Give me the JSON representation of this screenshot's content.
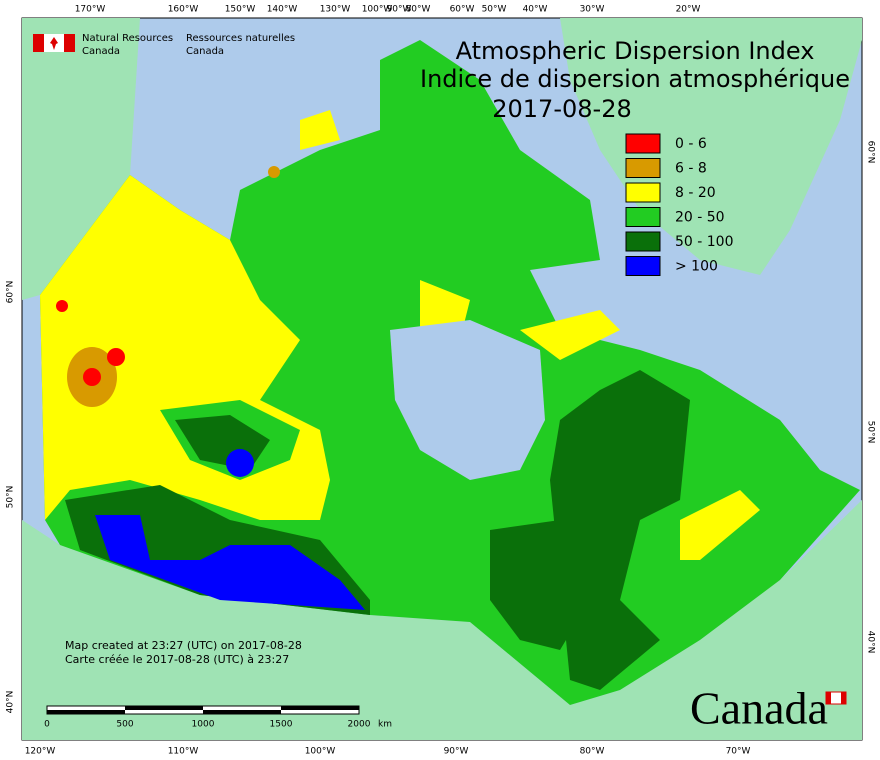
{
  "header": {
    "agency_en": [
      "Natural Resources",
      "Canada"
    ],
    "agency_fr": [
      "Ressources naturelles",
      "Canada"
    ]
  },
  "title": {
    "lines": [
      "Atmospheric Dispersion Index",
      "Indice de dispersion atmosphérique"
    ],
    "date": "2017-08-28"
  },
  "legend": [
    {
      "label": "0 - 6",
      "color": "#ff0000"
    },
    {
      "label": "6 - 8",
      "color": "#d89a00"
    },
    {
      "label": "8 - 20",
      "color": "#ffff00"
    },
    {
      "label": "20 - 50",
      "color": "#22cc22"
    },
    {
      "label": "50 - 100",
      "color": "#0a700a"
    },
    {
      "label": "> 100",
      "color": "#0000ff"
    }
  ],
  "graticule": {
    "top": [
      "170°W",
      "160°W",
      "150°W",
      "140°W",
      "130°W",
      "100°W",
      "90°W",
      "80°W",
      "60°W",
      "50°W",
      "40°W",
      "30°W",
      "20°W"
    ],
    "bottom": [
      "120°W",
      "110°W",
      "100°W",
      "90°W",
      "80°W",
      "70°W"
    ],
    "left": [
      "60°N",
      "50°N",
      "40°N"
    ],
    "right": [
      "60°N",
      "50°N",
      "40°N"
    ]
  },
  "notes": [
    "Map created at 23:27 (UTC) on 2017-08-28",
    "Carte créée le 2017-08-28 (UTC) à 23:27"
  ],
  "scale": {
    "ticks": [
      "0",
      "500",
      "1000",
      "1500",
      "2000"
    ],
    "unit": "km"
  },
  "wordmark": "Canada"
}
